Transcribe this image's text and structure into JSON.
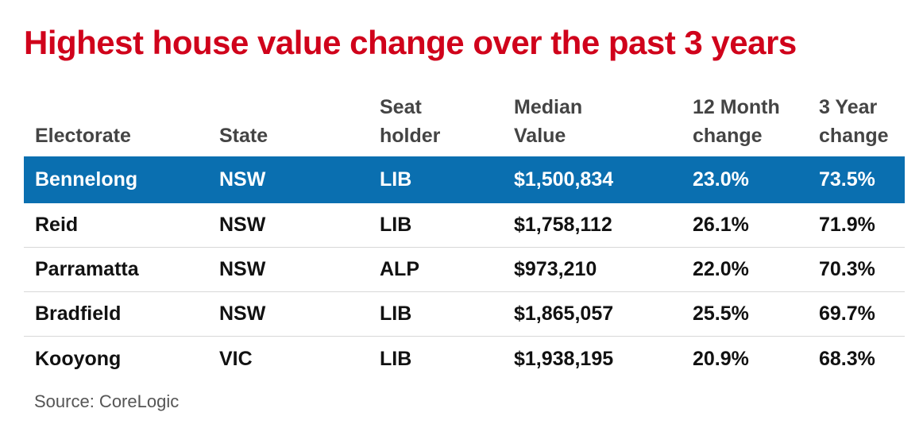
{
  "chart_data": {
    "type": "table",
    "title": "Highest house value change over the past 3 years",
    "columns": [
      "Electorate",
      "State",
      "Seat\nholder",
      "Median\nValue",
      "12 Month\nchange",
      "3 Year\nchange"
    ],
    "rows": [
      [
        "Bennelong",
        "NSW",
        "LIB",
        "$1,500,834",
        "23.0%",
        "73.5%"
      ],
      [
        "Reid",
        "NSW",
        "LIB",
        "$1,758,112",
        "26.1%",
        "71.9%"
      ],
      [
        "Parramatta",
        "NSW",
        "ALP",
        "$973,210",
        "22.0%",
        "70.3%"
      ],
      [
        "Bradfield",
        "NSW",
        "LIB",
        "$1,865,057",
        "25.5%",
        "69.7%"
      ],
      [
        "Kooyong",
        "VIC",
        "LIB",
        "$1,938,195",
        "20.9%",
        "68.3%"
      ]
    ],
    "highlighted_row": "Bennelong",
    "source": "Source: CoreLogic"
  },
  "colors": {
    "title": "#d0021b",
    "highlight_row": "#0a6fb0",
    "header_text": "#444444",
    "row_divider": "#d8d8d8"
  }
}
